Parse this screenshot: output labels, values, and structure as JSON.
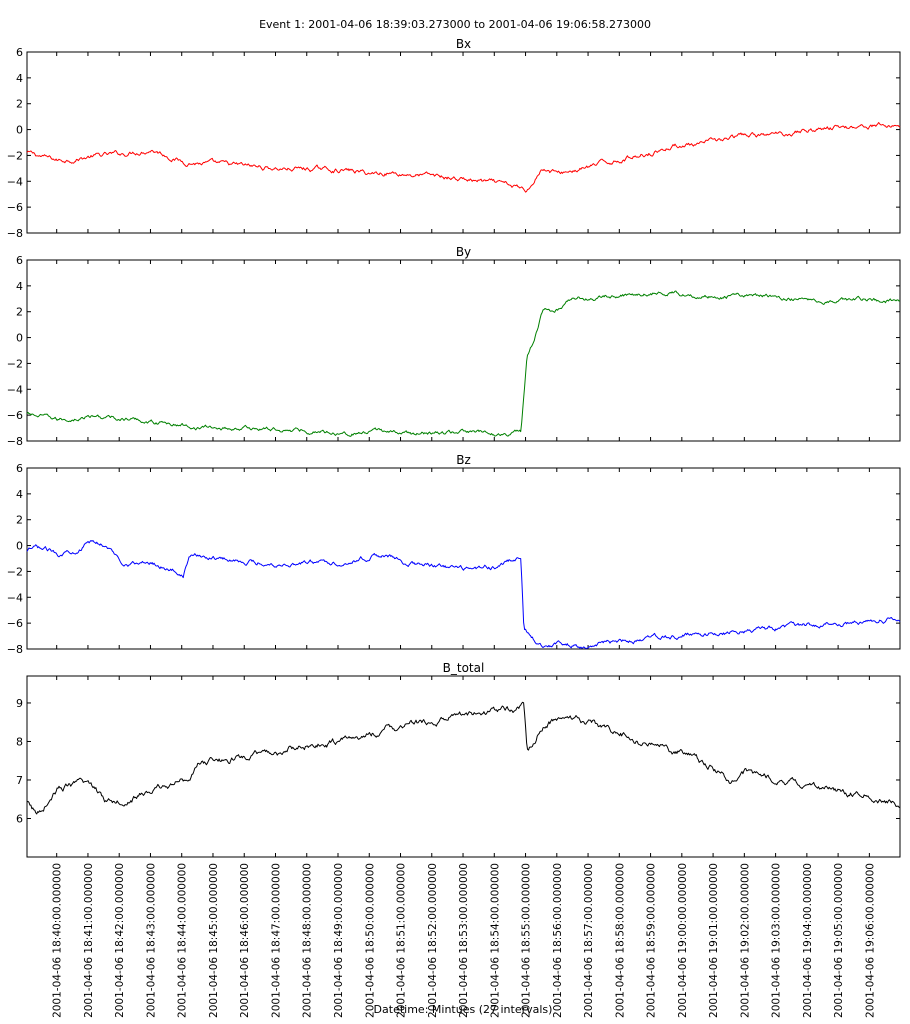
{
  "figure": {
    "suptitle": "Event 1: 2001-04-06 18:39:03.273000 to 2001-04-06 19:06:58.273000",
    "xlabel": "Datetime: Mintues (27 intervals)"
  },
  "chart_data": [
    {
      "type": "line",
      "title": "Bx",
      "color": "#ff0000",
      "ylim": [
        -8,
        6
      ],
      "yticks": [
        6,
        4,
        2,
        0,
        -2,
        -4,
        -6,
        -8
      ],
      "x_minutes": [
        0,
        1,
        2,
        3,
        4,
        5,
        5.2,
        6,
        8,
        10,
        11,
        11.5,
        13,
        14.5,
        15.5,
        16,
        16.3,
        16.5,
        17,
        18,
        18.5,
        20,
        21,
        21.5,
        22,
        23,
        24,
        25,
        26,
        27,
        28
      ],
      "values": [
        -1.8,
        -2.4,
        -2.1,
        -1.9,
        -1.5,
        -2.5,
        -2.5,
        -2.7,
        -3.0,
        -3.1,
        -3.4,
        -3.3,
        -3.6,
        -4.0,
        -4.4,
        -4.7,
        -3.5,
        -3.0,
        -3.4,
        -2.9,
        -2.6,
        -1.7,
        -1.1,
        -1.3,
        -0.9,
        -0.5,
        -0.4,
        0.0,
        0.2,
        0.3,
        0.3
      ]
    },
    {
      "type": "line",
      "title": "By",
      "color": "#008000",
      "ylim": [
        -8,
        6
      ],
      "yticks": [
        6,
        4,
        2,
        0,
        -2,
        -4,
        -6,
        -8
      ],
      "x_minutes": [
        0,
        1,
        2,
        3,
        4,
        5,
        6,
        7,
        8,
        9,
        10,
        11,
        11.5,
        12,
        13,
        14,
        15,
        15.8,
        16,
        16.2,
        16.5,
        17,
        17.5,
        18,
        19,
        20,
        21,
        22,
        23,
        24,
        25,
        26,
        27,
        28
      ],
      "values": [
        -5.9,
        -6.4,
        -6.1,
        -6.3,
        -6.5,
        -6.8,
        -7.0,
        -7.0,
        -7.1,
        -7.2,
        -7.3,
        -7.4,
        -7.2,
        -7.4,
        -7.4,
        -7.3,
        -7.5,
        -7.3,
        -1.5,
        -0.5,
        2.0,
        2.2,
        3.3,
        3.0,
        3.3,
        3.5,
        3.4,
        3.2,
        3.3,
        3.1,
        3.0,
        2.9,
        3.0,
        2.8
      ]
    },
    {
      "type": "line",
      "title": "Bz",
      "color": "#0000ff",
      "ylim": [
        -8,
        6
      ],
      "yticks": [
        6,
        4,
        2,
        0,
        -2,
        -4,
        -6,
        -8
      ],
      "x_minutes": [
        0,
        0.3,
        1,
        1.5,
        2,
        2.5,
        3,
        3.5,
        4,
        4.5,
        5,
        5.2,
        6,
        7,
        8,
        9,
        10,
        11,
        11.5,
        12,
        13,
        14,
        15,
        15.8,
        15.9,
        16.2,
        16.5,
        17,
        18,
        19,
        20,
        22,
        24,
        26,
        28
      ],
      "values": [
        -0.5,
        -0.2,
        -0.6,
        -0.3,
        0.2,
        0.1,
        -1.2,
        -1.4,
        -1.3,
        -1.7,
        -2.2,
        -0.8,
        -0.9,
        -1.2,
        -1.4,
        -1.3,
        -1.3,
        -0.8,
        -0.7,
        -1.3,
        -1.6,
        -1.9,
        -1.6,
        -1.0,
        -6.5,
        -7.2,
        -7.6,
        -7.6,
        -7.8,
        -7.5,
        -7.2,
        -6.8,
        -6.4,
        -6.0,
        -5.6
      ]
    },
    {
      "type": "line",
      "title": "B_total",
      "color": "#000000",
      "ylim": [
        5.0,
        9.7
      ],
      "yticks": [
        9,
        8,
        7,
        6
      ],
      "x_minutes": [
        0,
        0.3,
        1,
        2,
        2.5,
        3,
        4,
        5,
        5.5,
        6,
        7,
        8,
        9,
        10,
        11,
        12,
        13,
        14,
        15,
        15.9,
        16,
        16.5,
        17,
        18,
        19,
        20,
        21,
        22,
        22.5,
        23,
        24,
        25,
        26,
        27,
        28
      ],
      "values": [
        6.4,
        6.1,
        6.8,
        6.9,
        6.5,
        6.5,
        6.7,
        7.0,
        7.4,
        7.5,
        7.6,
        7.7,
        7.9,
        8.0,
        8.2,
        8.4,
        8.5,
        8.7,
        8.8,
        8.9,
        7.7,
        8.4,
        8.6,
        8.5,
        8.2,
        7.9,
        7.7,
        7.3,
        7.0,
        7.2,
        7.0,
        6.9,
        6.7,
        6.6,
        6.3
      ]
    }
  ],
  "x_axis": {
    "start_minute": 0,
    "end_minute": 27.93,
    "tick_minutes": [
      0.95,
      1.95,
      2.95,
      3.95,
      4.95,
      5.95,
      6.95,
      7.95,
      8.95,
      9.95,
      10.95,
      11.95,
      12.95,
      13.95,
      14.95,
      15.95,
      16.95,
      17.95,
      18.95,
      19.95,
      20.95,
      21.95,
      22.95,
      23.95,
      24.95,
      25.95,
      26.95
    ],
    "tick_labels": [
      "2001-04-06 18:40:00.000000",
      "2001-04-06 18:41:00.000000",
      "2001-04-06 18:42:00.000000",
      "2001-04-06 18:43:00.000000",
      "2001-04-06 18:44:00.000000",
      "2001-04-06 18:45:00.000000",
      "2001-04-06 18:46:00.000000",
      "2001-04-06 18:47:00.000000",
      "2001-04-06 18:48:00.000000",
      "2001-04-06 18:49:00.000000",
      "2001-04-06 18:50:00.000000",
      "2001-04-06 18:51:00.000000",
      "2001-04-06 18:52:00.000000",
      "2001-04-06 18:53:00.000000",
      "2001-04-06 18:54:00.000000",
      "2001-04-06 18:55:00.000000",
      "2001-04-06 18:56:00.000000",
      "2001-04-06 18:57:00.000000",
      "2001-04-06 18:58:00.000000",
      "2001-04-06 18:59:00.000000",
      "2001-04-06 19:00:00.000000",
      "2001-04-06 19:01:00.000000",
      "2001-04-06 19:02:00.000000",
      "2001-04-06 19:03:00.000000",
      "2001-04-06 19:04:00.000000",
      "2001-04-06 19:05:00.000000",
      "2001-04-06 19:06:00.000000"
    ]
  }
}
